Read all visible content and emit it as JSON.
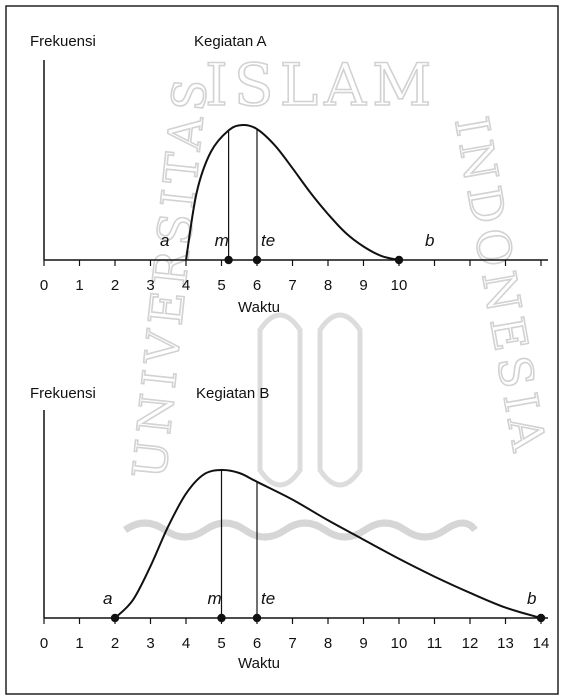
{
  "chart_data": [
    {
      "type": "line",
      "title": "Kegiatan A",
      "ylabel": "Frekuensi",
      "xlabel": "Waktu",
      "xlim": [
        0,
        14
      ],
      "xticks": [
        "0",
        "1",
        "2",
        "3",
        "4",
        "5",
        "6",
        "7",
        "8",
        "9",
        "10"
      ],
      "curve": [
        [
          4,
          0
        ],
        [
          4.3,
          0.5
        ],
        [
          4.7,
          0.8
        ],
        [
          5.2,
          0.96
        ],
        [
          5.6,
          1.0
        ],
        [
          6,
          0.97
        ],
        [
          6.5,
          0.85
        ],
        [
          7,
          0.68
        ],
        [
          7.5,
          0.5
        ],
        [
          8,
          0.34
        ],
        [
          8.5,
          0.2
        ],
        [
          9,
          0.1
        ],
        [
          9.5,
          0.03
        ],
        [
          10,
          0
        ]
      ],
      "markers": [
        {
          "label": "a",
          "x": 4,
          "point": false
        },
        {
          "label": "m",
          "x": 5.2,
          "point": true,
          "vline": true
        },
        {
          "label": "te",
          "x": 6,
          "point": true,
          "vline": true
        },
        {
          "label": "b",
          "x": 10,
          "point": true
        }
      ]
    },
    {
      "type": "line",
      "title": "Kegiatan B",
      "ylabel": "Frekuensi",
      "xlabel": "Waktu",
      "xlim": [
        0,
        14
      ],
      "xticks": [
        "0",
        "1",
        "2",
        "3",
        "4",
        "5",
        "6",
        "7",
        "8",
        "9",
        "10",
        "11",
        "12",
        "13",
        "14"
      ],
      "curve": [
        [
          2,
          0
        ],
        [
          2.5,
          0.12
        ],
        [
          3,
          0.35
        ],
        [
          3.5,
          0.62
        ],
        [
          4,
          0.84
        ],
        [
          4.5,
          0.97
        ],
        [
          5,
          1.0
        ],
        [
          5.5,
          0.98
        ],
        [
          6,
          0.92
        ],
        [
          7,
          0.8
        ],
        [
          8,
          0.66
        ],
        [
          9,
          0.53
        ],
        [
          10,
          0.4
        ],
        [
          11,
          0.28
        ],
        [
          12,
          0.17
        ],
        [
          13,
          0.07
        ],
        [
          14,
          0
        ]
      ],
      "markers": [
        {
          "label": "a",
          "x": 2,
          "point": true
        },
        {
          "label": "m",
          "x": 5,
          "point": true,
          "vline": true
        },
        {
          "label": "te",
          "x": 6,
          "point": true,
          "vline": true
        },
        {
          "label": "b",
          "x": 14,
          "point": true
        }
      ]
    }
  ],
  "watermark": {
    "text_top": "ISLAM",
    "text_left": "UNIVERSITAS",
    "text_right": "INDONESIA"
  }
}
